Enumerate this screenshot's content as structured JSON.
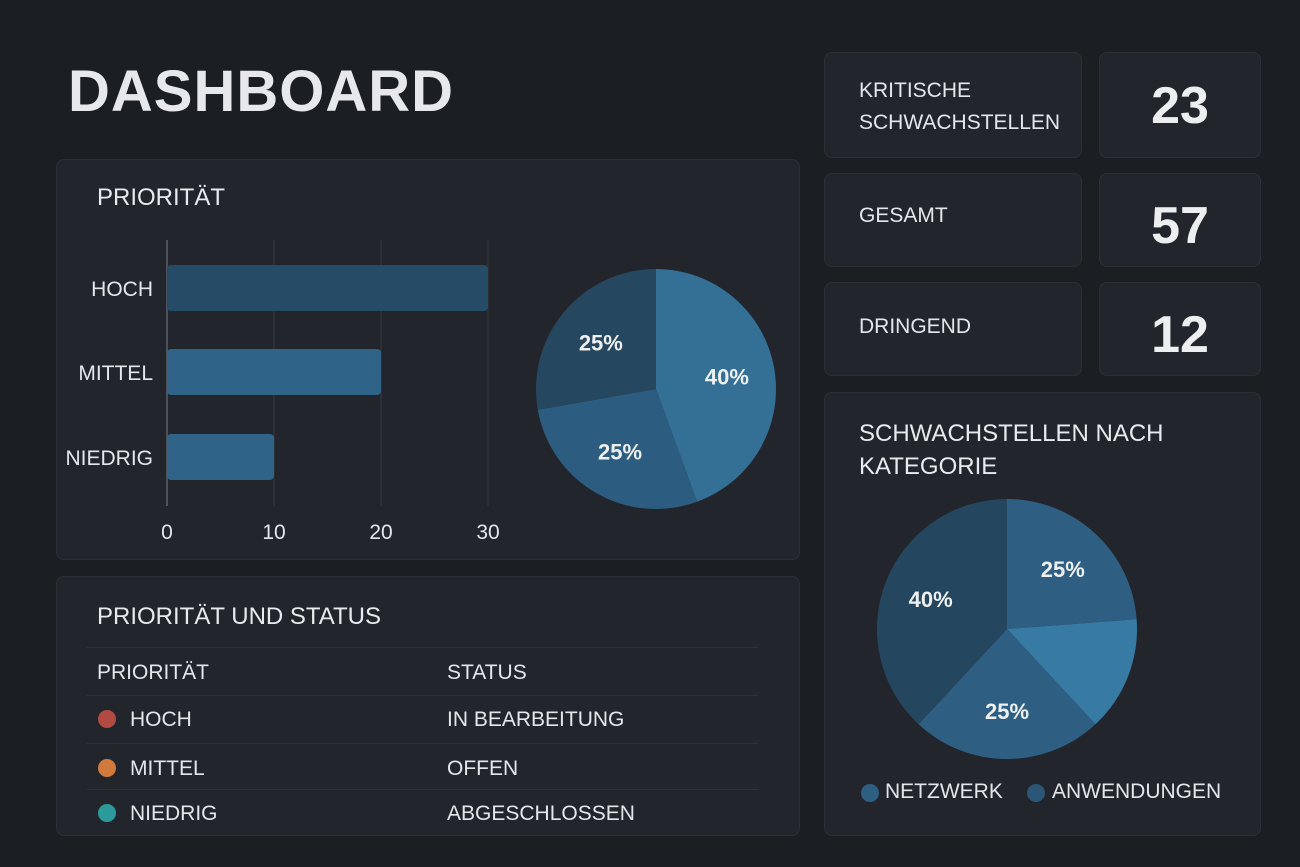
{
  "header": {
    "title": "DASHBOARD"
  },
  "stats": [
    {
      "label_line1": "KRITISCHE",
      "label_line2": "SCHWACHSTELLEN",
      "value": "23"
    },
    {
      "label_line1": "GESAMT",
      "label_line2": "",
      "value": "57"
    },
    {
      "label_line1": "DRINGEND",
      "label_line2": "",
      "value": "12"
    }
  ],
  "priority_panel": {
    "title": "PRIORITÄT"
  },
  "chart_data": [
    {
      "type": "bar",
      "orientation": "horizontal",
      "categories": [
        "HOCH",
        "MITTEL",
        "NIEDRIG"
      ],
      "values": [
        30,
        20,
        10
      ],
      "xlim": [
        0,
        30
      ],
      "xticks": [
        "0",
        "10",
        "20",
        "30"
      ],
      "grid": true,
      "color": "#2c5a7a"
    },
    {
      "type": "pie",
      "slices": [
        {
          "label": "40%",
          "value": 40,
          "color": "#346f96"
        },
        {
          "label": "25%",
          "value": 25,
          "color": "#2c5d80"
        },
        {
          "label": "25%",
          "value": 25,
          "color": "#25475f"
        }
      ]
    },
    {
      "type": "pie",
      "title": "SCHWACHSTELLEN NACH KATEGORIE",
      "slices": [
        {
          "label": "25%",
          "value": 25,
          "color": "#2e5f82"
        },
        {
          "label": "",
          "value": 15,
          "color": "#377aa3"
        },
        {
          "label": "25%",
          "value": 25,
          "color": "#2e5f82"
        },
        {
          "label": "40%",
          "value": 40,
          "color": "#25465f"
        }
      ],
      "legend": [
        {
          "name": "NETZWERK",
          "color": "#2e5f82"
        },
        {
          "name": "ANWENDUNGEN",
          "color": "#2c5676"
        }
      ],
      "legend_position": "bottom"
    }
  ],
  "table": {
    "title": "PRIORITÄT UND STATUS",
    "headers": [
      "PRIORITÄT",
      "STATUS"
    ],
    "rows": [
      {
        "priority": "HOCH",
        "status": "IN BEARBEITUNG",
        "color": "#b24a44"
      },
      {
        "priority": "MITTEL",
        "status": "OFFEN",
        "color": "#d07a3e"
      },
      {
        "priority": "NIEDRIG",
        "status": "ABGESCHLOSSEN",
        "color": "#2a9a9a"
      }
    ]
  }
}
